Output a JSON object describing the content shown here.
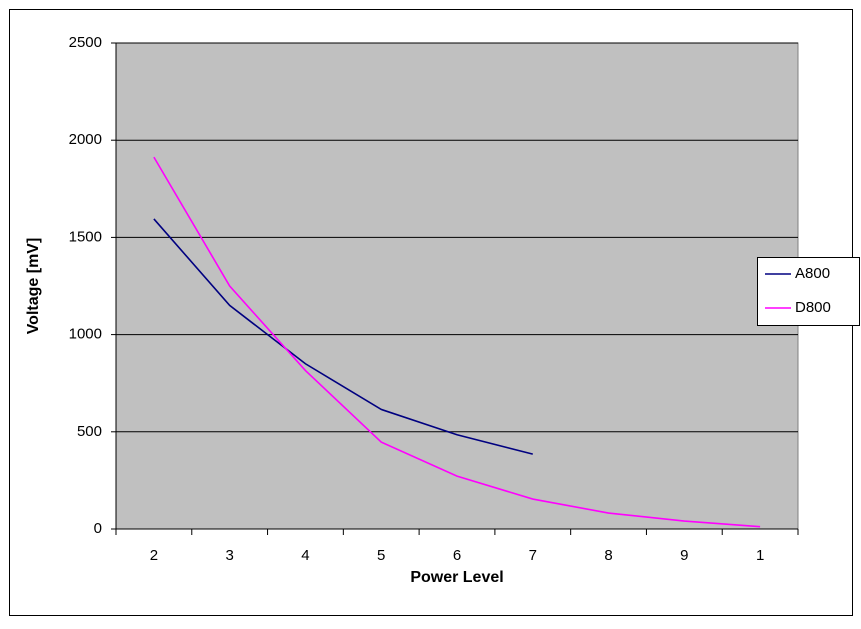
{
  "chart_data": {
    "type": "line",
    "x_label": "Power Level",
    "y_label": "Voltage [mV]",
    "categories": [
      "2",
      "3",
      "4",
      "5",
      "6",
      "7",
      "8",
      "9",
      "1"
    ],
    "series": [
      {
        "name": "A800",
        "color": "#000080",
        "values": [
          1595,
          1150,
          850,
          615,
          485,
          385,
          null,
          null,
          null
        ]
      },
      {
        "name": "D800",
        "color": "#ff00ff",
        "values": [
          1913,
          1250,
          815,
          447,
          272,
          154,
          82,
          41,
          12
        ]
      }
    ],
    "ylim": [
      0,
      2500
    ],
    "yticks": [
      0,
      500,
      1000,
      1500,
      2000,
      2500
    ],
    "grid": true,
    "plot_background": "#c0c0c0",
    "legend": "right"
  }
}
